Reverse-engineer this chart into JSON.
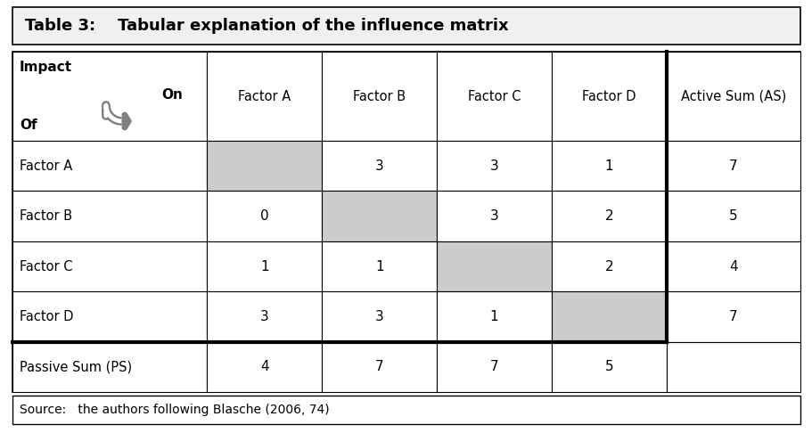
{
  "title": "Table 3:    Tabular explanation of the influence matrix",
  "source_text": "Source:   the authors following Blasche (2006, 74)",
  "col_headers": [
    "Factor A",
    "Factor B",
    "Factor C",
    "Factor D",
    "Active Sum (AS)"
  ],
  "row_headers": [
    "Factor A",
    "Factor B",
    "Factor C",
    "Factor D",
    "Passive Sum (PS)"
  ],
  "data": [
    [
      "",
      "3",
      "3",
      "1",
      "7"
    ],
    [
      "0",
      "",
      "3",
      "2",
      "5"
    ],
    [
      "1",
      "1",
      "",
      "2",
      "4"
    ],
    [
      "3",
      "3",
      "1",
      "",
      "7"
    ],
    [
      "4",
      "7",
      "7",
      "5",
      ""
    ]
  ],
  "diagonal_color": "#cccccc",
  "bg_color": "#ffffff",
  "title_bg": "#f0f0f0",
  "cell_bg": "#ffffff",
  "border_color": "#000000"
}
